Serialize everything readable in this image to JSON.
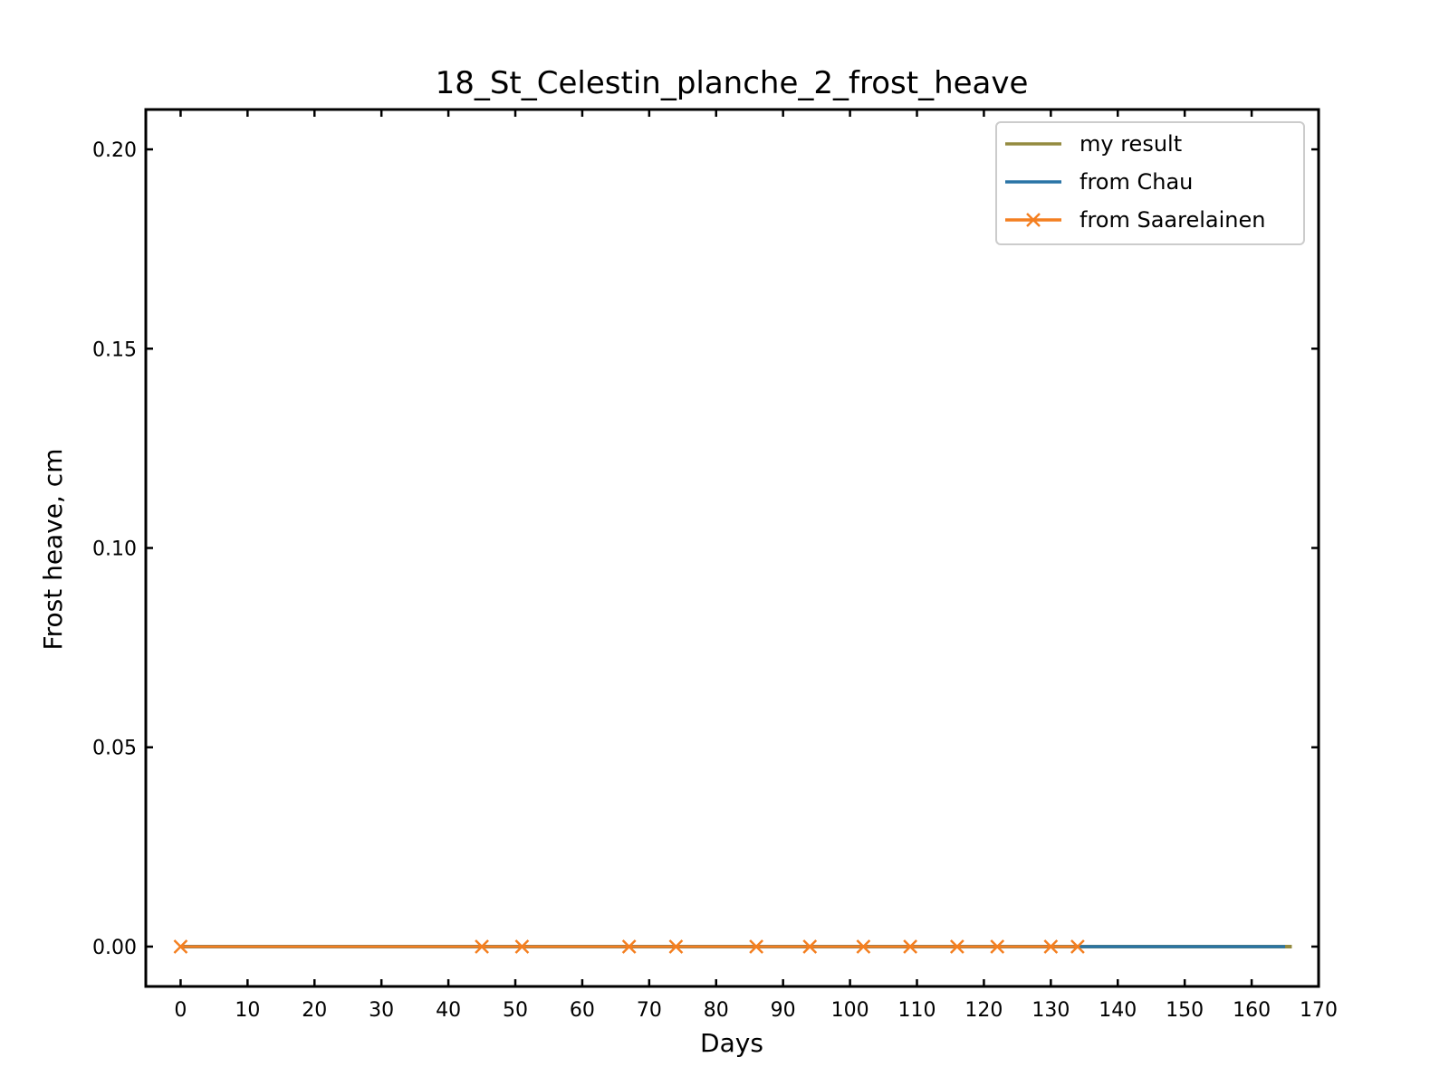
{
  "chart_data": {
    "type": "line",
    "title": "18_St_Celestin_planche_2_frost_heave",
    "xlabel": "Days",
    "ylabel": "Frost heave, cm",
    "xlim": [
      -5.2,
      170
    ],
    "ylim": [
      -0.01,
      0.21
    ],
    "xticks": [
      0,
      10,
      20,
      30,
      40,
      50,
      60,
      70,
      80,
      90,
      100,
      110,
      120,
      130,
      140,
      150,
      160,
      170
    ],
    "yticks": [
      0.0,
      0.05,
      0.1,
      0.15,
      0.2
    ],
    "ytick_labels": [
      "0.00",
      "0.05",
      "0.10",
      "0.15",
      "0.20"
    ],
    "grid": false,
    "legend_position": "upper right",
    "series": [
      {
        "name": "my result",
        "color": "#948a3f",
        "style": "line",
        "x": [
          0,
          166
        ],
        "y": [
          0,
          0
        ]
      },
      {
        "name": "from Chau",
        "color": "#2a74a6",
        "style": "line",
        "x": [
          0,
          165
        ],
        "y": [
          0,
          0
        ]
      },
      {
        "name": "from Saarelainen",
        "color": "#f47f20",
        "style": "line-x",
        "x": [
          0,
          45,
          51,
          67,
          74,
          86,
          94,
          102,
          109,
          116,
          122,
          130,
          134
        ],
        "y": [
          0,
          0,
          0,
          0,
          0,
          0,
          0,
          0,
          0,
          0,
          0,
          0,
          0
        ]
      }
    ]
  }
}
